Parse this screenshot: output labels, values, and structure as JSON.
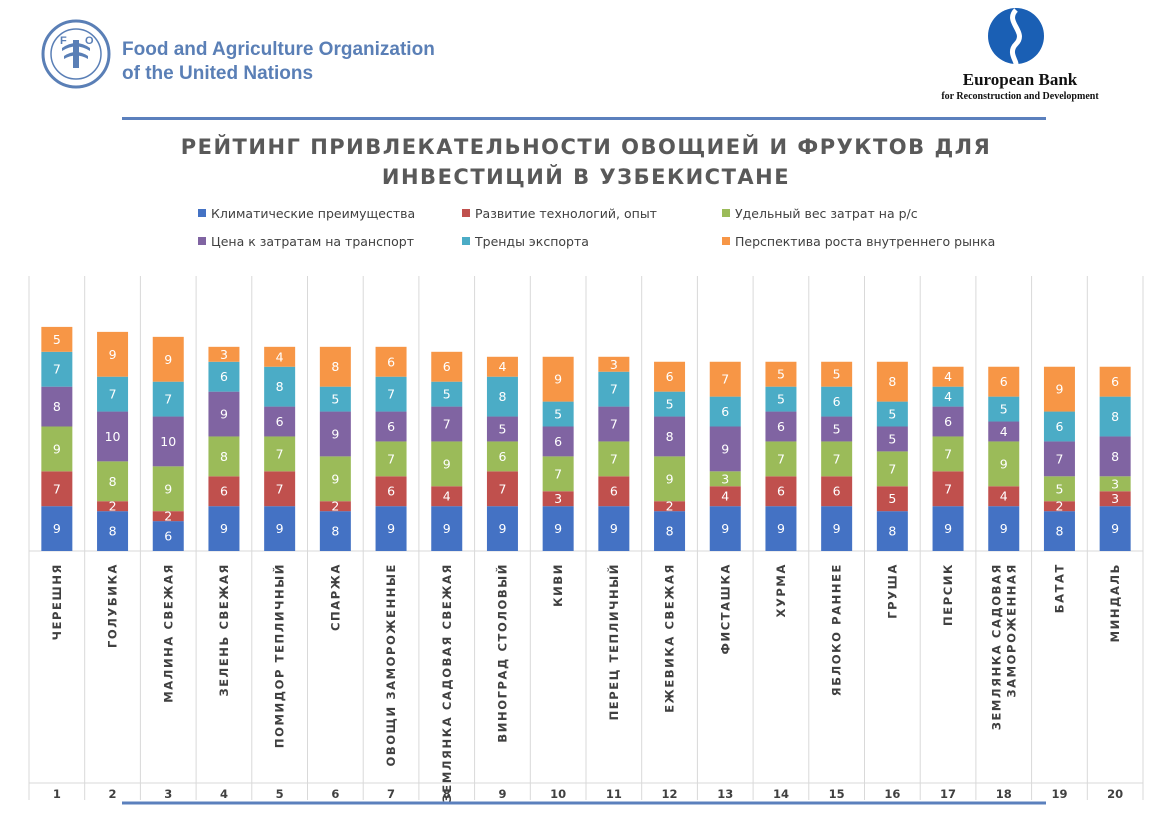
{
  "header": {
    "fao_line1": "Food and Agriculture Organization",
    "fao_line2": "of the United Nations",
    "ebrd_name": "European Bank",
    "ebrd_sub": "for Reconstruction and Development"
  },
  "colors": {
    "fao_blue": "#5a7fb6",
    "ebrd_blue": "#1a5fb4",
    "rule": "#5b80bd",
    "title": "#595959"
  },
  "chart_data": {
    "type": "bar",
    "stacked": true,
    "title": "РЕЙТИНГ ПРИВЛЕКАТЕЛЬНОСТИ ОВОЩИЕЙ И ФРУКТОВ ДЛЯ ИНВЕСТИЦИЙ В УЗБЕКИСТАНЕ",
    "legend_position": "top",
    "grid": false,
    "categories": [
      "ЧЕРЕШНЯ",
      "ГОЛУБИКА",
      "МАЛИНА СВЕЖАЯ",
      "ЗЕЛЕНЬ СВЕЖАЯ",
      "ПОМИДОР ТЕПЛИЧНЫЙ",
      "СПАРЖА",
      "ОВОЩИ ЗАМОРОЖЕННЫЕ",
      "ЗЕМЛЯНКА САДОВАЯ СВЕЖАЯ",
      "ВИНОГРАД СТОЛОВЫЙ",
      "КИВИ",
      "ПЕРЕЦ ТЕПЛИЧНЫЙ",
      "ЕЖЕВИКА СВЕЖАЯ",
      "ФИСТАШКА",
      "ХУРМА",
      "ЯБЛОКО РАННЕЕ",
      "ГРУША",
      "ПЕРСИК",
      "ЗЕМЛЯНКА САДОВАЯ ЗАМОРОЖЕННАЯ",
      "БАТАТ",
      "МИНДАЛЬ"
    ],
    "ranks": [
      "1",
      "2",
      "3",
      "4",
      "5",
      "6",
      "7",
      "8",
      "9",
      "10",
      "11",
      "12",
      "13",
      "14",
      "15",
      "16",
      "17",
      "18",
      "19",
      "20"
    ],
    "series": [
      {
        "name": "Климатические преимущества",
        "color": "#4472c4",
        "values": [
          9,
          8,
          6,
          9,
          9,
          8,
          9,
          9,
          9,
          9,
          9,
          8,
          9,
          9,
          9,
          8,
          9,
          9,
          8,
          9
        ]
      },
      {
        "name": "Развитие технологий, опыт",
        "color": "#c0504d",
        "values": [
          7,
          2,
          2,
          6,
          7,
          2,
          6,
          4,
          7,
          3,
          6,
          2,
          4,
          6,
          6,
          5,
          7,
          4,
          2,
          3
        ]
      },
      {
        "name": "Удельный вес затрат на р/с",
        "color": "#9bbb59",
        "values": [
          9,
          8,
          9,
          8,
          7,
          9,
          7,
          9,
          6,
          7,
          7,
          9,
          3,
          7,
          7,
          7,
          7,
          9,
          5,
          3
        ]
      },
      {
        "name": "Цена к затратам на транспорт",
        "color": "#8064a2",
        "values": [
          8,
          10,
          10,
          9,
          6,
          9,
          6,
          7,
          5,
          6,
          7,
          8,
          9,
          6,
          5,
          5,
          6,
          4,
          7,
          8
        ]
      },
      {
        "name": "Тренды экспорта",
        "color": "#4bacc6",
        "values": [
          7,
          7,
          7,
          6,
          8,
          5,
          7,
          5,
          8,
          5,
          7,
          5,
          6,
          5,
          6,
          5,
          4,
          5,
          6,
          8
        ]
      },
      {
        "name": "Перспектива роста внутреннего рынка",
        "color": "#f79646",
        "values": [
          5,
          9,
          9,
          3,
          4,
          8,
          6,
          6,
          4,
          9,
          3,
          6,
          7,
          5,
          5,
          8,
          4,
          6,
          9,
          6
        ]
      }
    ]
  }
}
